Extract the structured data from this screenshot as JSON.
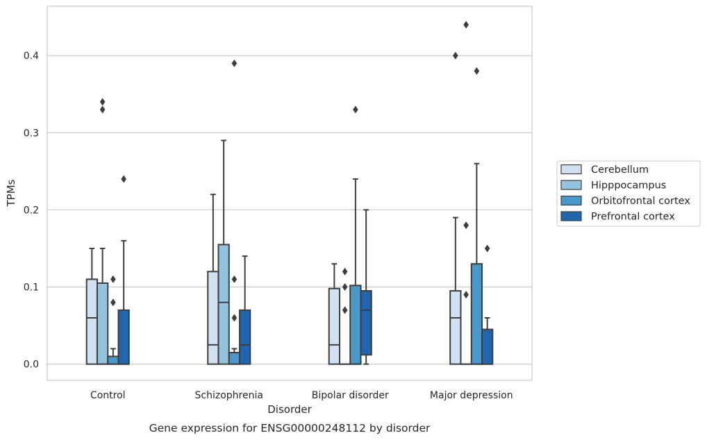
{
  "chart_data": {
    "type": "box",
    "xlabel": "Disorder",
    "ylabel": "TPMs",
    "caption": "Gene expression for ENSG00000248112 by disorder",
    "ylim": [
      -0.021,
      0.464
    ],
    "yticks": [
      0.0,
      0.1,
      0.2,
      0.3,
      0.4
    ],
    "ytick_labels": [
      "0.0",
      "0.1",
      "0.2",
      "0.3",
      "0.4"
    ],
    "grid": "horizontal",
    "legend_position": "right",
    "categories": [
      "Control",
      "Schizophrenia",
      "Bipolar disorder",
      "Major depression"
    ],
    "series": [
      {
        "name": "Cerebellum",
        "color": "#d0e1f2",
        "boxes": [
          {
            "q1": 0.0,
            "median": 0.06,
            "q3": 0.11,
            "whisker_low": 0.0,
            "whisker_high": 0.15,
            "outliers": []
          },
          {
            "q1": 0.0,
            "median": 0.025,
            "q3": 0.12,
            "whisker_low": 0.0,
            "whisker_high": 0.22,
            "outliers": []
          },
          {
            "q1": 0.0,
            "median": 0.025,
            "q3": 0.098,
            "whisker_low": 0.0,
            "whisker_high": 0.13,
            "outliers": []
          },
          {
            "q1": 0.0,
            "median": 0.06,
            "q3": 0.095,
            "whisker_low": 0.0,
            "whisker_high": 0.19,
            "outliers": [
              0.4
            ]
          }
        ]
      },
      {
        "name": "Hipppocampus",
        "color": "#94c4df",
        "boxes": [
          {
            "q1": 0.0,
            "median": 0.0,
            "q3": 0.105,
            "whisker_low": 0.0,
            "whisker_high": 0.15,
            "outliers": [
              0.33,
              0.34
            ]
          },
          {
            "q1": 0.0,
            "median": 0.08,
            "q3": 0.155,
            "whisker_low": 0.0,
            "whisker_high": 0.29,
            "outliers": []
          },
          {
            "q1": 0.0,
            "median": 0.0,
            "q3": 0.0,
            "whisker_low": 0.0,
            "whisker_high": 0.0,
            "outliers": [
              0.07,
              0.1,
              0.12
            ]
          },
          {
            "q1": 0.0,
            "median": 0.0,
            "q3": 0.0,
            "whisker_low": 0.0,
            "whisker_high": 0.0,
            "outliers": [
              0.09,
              0.18,
              0.44
            ]
          }
        ]
      },
      {
        "name": "Orbitofrontal cortex",
        "color": "#4a98c9",
        "boxes": [
          {
            "q1": 0.0,
            "median": 0.0,
            "q3": 0.01,
            "whisker_low": 0.0,
            "whisker_high": 0.02,
            "outliers": [
              0.08,
              0.11
            ]
          },
          {
            "q1": 0.0,
            "median": 0.0,
            "q3": 0.015,
            "whisker_low": 0.0,
            "whisker_high": 0.02,
            "outliers": [
              0.06,
              0.11,
              0.39
            ]
          },
          {
            "q1": 0.0,
            "median": 0.0,
            "q3": 0.102,
            "whisker_low": 0.0,
            "whisker_high": 0.24,
            "outliers": [
              0.33
            ]
          },
          {
            "q1": 0.0,
            "median": 0.0,
            "q3": 0.13,
            "whisker_low": 0.0,
            "whisker_high": 0.26,
            "outliers": [
              0.38
            ]
          }
        ]
      },
      {
        "name": "Prefrontal cortex",
        "color": "#2166ac",
        "boxes": [
          {
            "q1": 0.0,
            "median": 0.0,
            "q3": 0.07,
            "whisker_low": 0.0,
            "whisker_high": 0.16,
            "outliers": [
              0.24
            ]
          },
          {
            "q1": 0.0,
            "median": 0.025,
            "q3": 0.07,
            "whisker_low": 0.0,
            "whisker_high": 0.14,
            "outliers": []
          },
          {
            "q1": 0.012,
            "median": 0.07,
            "q3": 0.095,
            "whisker_low": 0.0,
            "whisker_high": 0.2,
            "outliers": []
          },
          {
            "q1": 0.0,
            "median": 0.0,
            "q3": 0.045,
            "whisker_low": 0.0,
            "whisker_high": 0.06,
            "outliers": [
              0.15
            ]
          }
        ]
      }
    ]
  }
}
